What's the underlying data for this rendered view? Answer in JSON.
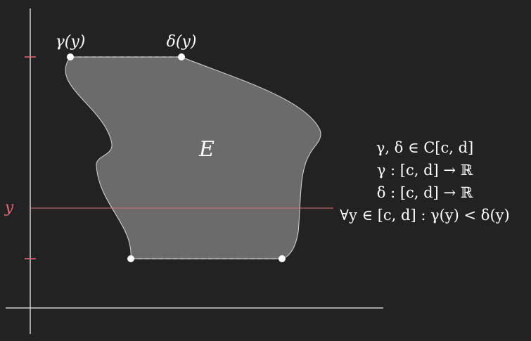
{
  "labels": {
    "gamma_top": "γ(y)",
    "delta_top": "δ(y)",
    "region": "E",
    "y_axis_label": "y"
  },
  "conditions": [
    "γ, δ ∈ C[c, d]",
    "γ : [c, d] → ℝ",
    "δ : [c, d] → ℝ",
    "∀y ∈ [c, d] : γ(y) < δ(y)"
  ],
  "colors": {
    "background": "#222222",
    "region_fill": "#6b6b6b",
    "axis": "#cfcfcf",
    "accent": "#e06a7a",
    "text": "#ffffff"
  }
}
